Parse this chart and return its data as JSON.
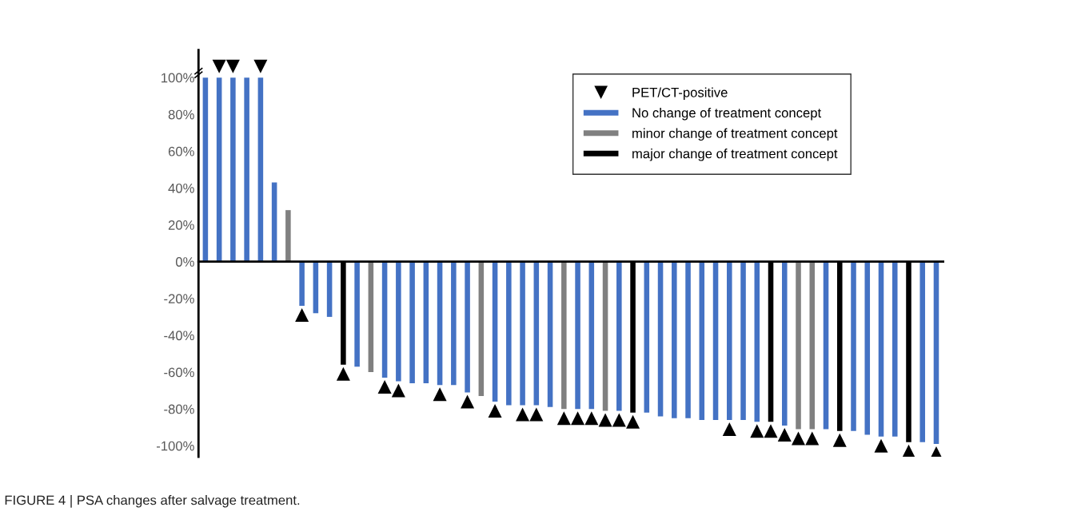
{
  "chart_data": {
    "type": "bar",
    "categories": [
      null,
      null,
      null,
      null,
      null,
      null,
      null,
      null,
      null,
      null,
      null,
      null,
      null,
      null,
      null,
      null,
      null,
      null,
      null,
      null,
      null,
      null,
      null,
      null,
      null,
      null,
      null,
      null,
      null,
      null,
      null,
      null,
      null,
      null,
      null,
      null,
      null,
      null,
      null,
      null,
      null,
      null,
      null,
      null,
      null,
      null,
      null,
      null,
      null,
      null,
      null,
      null,
      null,
      null
    ],
    "series": [
      {
        "name": "PET/CT-positive",
        "type": "scatter",
        "marker": "triangle",
        "color": "#000000",
        "values": [
          null,
          106,
          106,
          null,
          106,
          null,
          null,
          null,
          null,
          null,
          null,
          null,
          null,
          null,
          null,
          null,
          null,
          null,
          null,
          null,
          null,
          null,
          null,
          null,
          null,
          null,
          null,
          null,
          null,
          null,
          null,
          null,
          null,
          null,
          null,
          null,
          null,
          null,
          null,
          null,
          null,
          null,
          null,
          null,
          null,
          null,
          null,
          null,
          null,
          null,
          null,
          null,
          null,
          null
        ]
      },
      {
        "name": "No change of treatment concept",
        "color": "#4472c4",
        "values": [
          100,
          100,
          100,
          100,
          100,
          43,
          null,
          -24,
          -28,
          -30,
          null,
          -57,
          null,
          -63,
          -65,
          -66,
          -66,
          -67,
          -67,
          -71,
          null,
          -76,
          -78,
          -78,
          -78,
          -79,
          null,
          -80,
          -80,
          null,
          -81,
          null,
          -82,
          -84,
          -85,
          -85,
          -86,
          -86,
          -86,
          -86,
          -87,
          null,
          -89,
          null,
          null,
          -91,
          null,
          -92,
          -94,
          -95,
          -95,
          null,
          -98,
          -99
        ]
      },
      {
        "name": "minor change of treatment concept",
        "color": "#808080",
        "values": [
          null,
          null,
          null,
          null,
          null,
          null,
          28,
          null,
          null,
          null,
          null,
          null,
          -60,
          null,
          null,
          null,
          null,
          null,
          null,
          null,
          -73,
          null,
          null,
          null,
          null,
          null,
          -80,
          null,
          null,
          -81,
          null,
          null,
          null,
          null,
          null,
          null,
          null,
          null,
          null,
          null,
          null,
          null,
          null,
          -91,
          -91,
          null,
          null,
          null,
          null,
          null,
          null,
          null,
          null,
          null
        ]
      },
      {
        "name": "major change of treatment concept",
        "color": "#000000",
        "values": [
          null,
          null,
          null,
          null,
          null,
          null,
          null,
          null,
          null,
          null,
          -56,
          null,
          null,
          null,
          null,
          null,
          null,
          null,
          null,
          null,
          null,
          null,
          null,
          null,
          null,
          null,
          null,
          null,
          null,
          null,
          null,
          -82,
          null,
          null,
          null,
          null,
          null,
          null,
          null,
          null,
          null,
          -87,
          null,
          null,
          null,
          null,
          -92,
          null,
          null,
          null,
          null,
          -98,
          null,
          null
        ]
      },
      {
        "type": "scatter",
        "marker": "triangle",
        "color": "#000000",
        "values": [
          null,
          null,
          null,
          null,
          null,
          null,
          null,
          -29,
          null,
          null,
          -61,
          null,
          null,
          -68,
          -70,
          null,
          null,
          -72,
          null,
          -76,
          null,
          -81,
          null,
          -83,
          -83,
          null,
          -85,
          -85,
          -85,
          -86,
          -86,
          -87,
          null,
          null,
          null,
          null,
          null,
          null,
          -91,
          null,
          -92,
          -92,
          -94,
          -96,
          -96,
          null,
          -97,
          null,
          null,
          -100,
          null,
          -103,
          null,
          -104
        ]
      }
    ],
    "ylim": [
      -106,
      115
    ],
    "yticks": [
      {
        "value": -100,
        "label": "-100%"
      },
      {
        "value": -80,
        "label": "-80%"
      },
      {
        "value": -60,
        "label": "-60%"
      },
      {
        "value": -40,
        "label": "-40%"
      },
      {
        "value": -20,
        "label": "-20%"
      },
      {
        "value": 0,
        "label": "0%"
      },
      {
        "value": 20,
        "label": "20%"
      },
      {
        "value": 40,
        "label": "40%"
      },
      {
        "value": 60,
        "label": "60%"
      },
      {
        "value": 80,
        "label": "80%"
      },
      {
        "value": 100,
        "label": "100%"
      }
    ],
    "legend": "top right",
    "tick_labels": "y",
    "annotations": [
      "FIGURE 4 | PSA changes after salvage treatment."
    ]
  }
}
